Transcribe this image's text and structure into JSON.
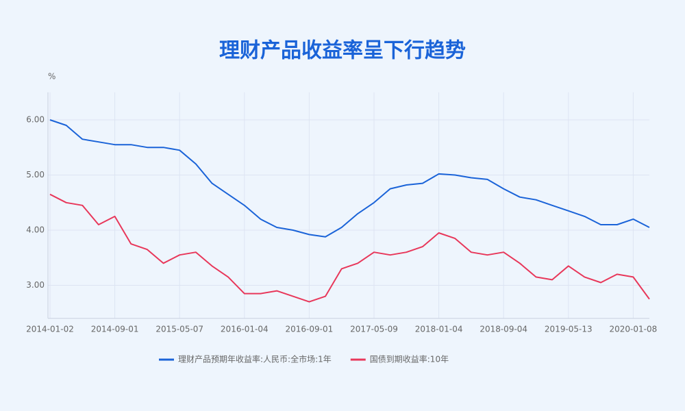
{
  "chart_data": {
    "type": "line",
    "title": "理财产品收益率呈下行趋势",
    "y_unit": "%",
    "categories": [
      "2014-01-02",
      null,
      null,
      null,
      "2014-09-01",
      null,
      null,
      null,
      "2015-05-07",
      null,
      null,
      null,
      "2016-01-04",
      null,
      null,
      null,
      "2016-09-01",
      null,
      null,
      null,
      "2017-05-09",
      null,
      null,
      null,
      "2018-01-04",
      null,
      null,
      null,
      "2018-09-04",
      null,
      null,
      null,
      "2019-05-13",
      null,
      null,
      null,
      "2020-01-08",
      null
    ],
    "series": [
      {
        "name": "理财产品预期年收益率:人民币:全市场:1年",
        "color": "#1a63d8",
        "values": [
          6.0,
          5.9,
          5.65,
          5.6,
          5.55,
          5.55,
          5.5,
          5.5,
          5.45,
          5.2,
          4.85,
          4.65,
          4.45,
          4.2,
          4.05,
          4.0,
          3.92,
          3.88,
          4.05,
          4.3,
          4.5,
          4.75,
          4.82,
          4.85,
          5.02,
          5.0,
          4.95,
          4.92,
          4.75,
          4.6,
          4.55,
          4.45,
          4.35,
          4.25,
          4.1,
          4.1,
          4.2,
          4.05
        ]
      },
      {
        "name": "国债到期收益率:10年",
        "color": "#e8375a",
        "values": [
          4.65,
          4.5,
          4.45,
          4.1,
          4.25,
          3.75,
          3.65,
          3.4,
          3.55,
          3.6,
          3.35,
          3.15,
          2.85,
          2.85,
          2.9,
          2.8,
          2.7,
          2.8,
          3.3,
          3.4,
          3.6,
          3.55,
          3.6,
          3.7,
          3.95,
          3.85,
          3.6,
          3.55,
          3.6,
          3.4,
          3.15,
          3.1,
          3.35,
          3.15,
          3.05,
          3.2,
          3.15,
          2.75
        ]
      }
    ],
    "ylim": [
      2.4,
      6.5
    ],
    "yticks": [
      {
        "value": 3,
        "label": "3.00"
      },
      {
        "value": 4,
        "label": "4.00"
      },
      {
        "value": 5,
        "label": "5.00"
      },
      {
        "value": 6,
        "label": "6.00"
      }
    ],
    "grid": true,
    "legend": "bottom"
  }
}
